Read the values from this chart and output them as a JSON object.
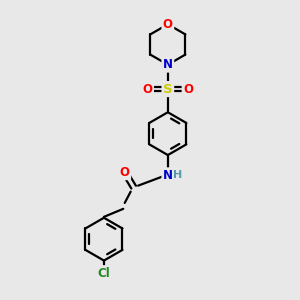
{
  "bg_color": "#e8e8e8",
  "bond_color": "#000000",
  "bond_width": 1.6,
  "atom_colors": {
    "O": "#ff0000",
    "N": "#0000cd",
    "S": "#cccc00",
    "Cl": "#228b22",
    "H": "#5599aa",
    "C": "#000000"
  },
  "figsize": [
    3.0,
    3.0
  ],
  "dpi": 100
}
